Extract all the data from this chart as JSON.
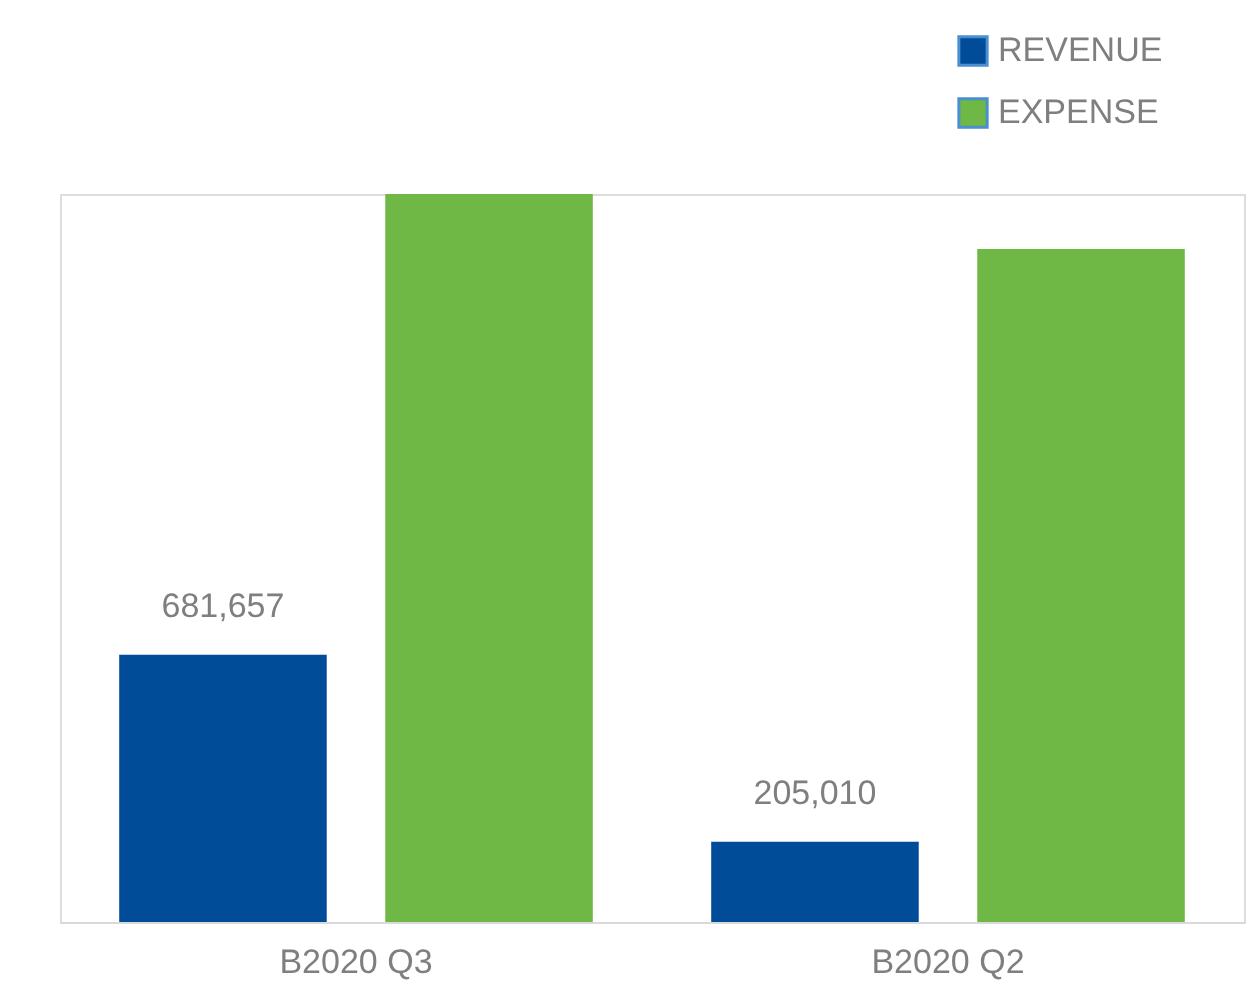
{
  "chart_data": {
    "type": "bar",
    "categories": [
      "B2020 Q3",
      "B2020 Q2"
    ],
    "series": [
      {
        "name": "REVENUE",
        "color": "#004c99",
        "values": [
          681657,
          205010
        ],
        "value_labels": [
          "681,657",
          "205,010"
        ]
      },
      {
        "name": "EXPENSE",
        "color": "#6fb845",
        "values": [
          1857000,
          1717000
        ],
        "value_labels": [
          null,
          null
        ]
      }
    ],
    "legend": "top right",
    "grid": false,
    "tick_labels": "x"
  }
}
